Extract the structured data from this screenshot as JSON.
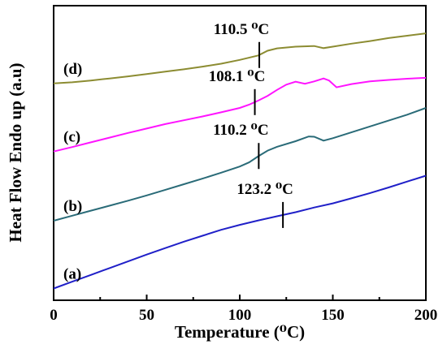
{
  "chart_data": {
    "type": "line",
    "xlabel": "Temperature (⁰C)",
    "ylabel": "Heat Flow Endo up (a.u)",
    "xlim": [
      0,
      200
    ],
    "ylim": [
      0,
      100
    ],
    "x_ticks": [
      "0",
      "50",
      "100",
      "150",
      "200"
    ],
    "grid": false,
    "legend": "none",
    "series": [
      {
        "name": "(a)",
        "color": "#2020c8",
        "annotation": "123.2 ⁰C",
        "transition_x": 123.2,
        "points": [
          [
            0,
            4
          ],
          [
            10,
            6.3
          ],
          [
            20,
            8.6
          ],
          [
            30,
            10.9
          ],
          [
            40,
            13.2
          ],
          [
            50,
            15.5
          ],
          [
            60,
            17.7
          ],
          [
            70,
            19.9
          ],
          [
            80,
            21.9
          ],
          [
            90,
            23.9
          ],
          [
            100,
            25.6
          ],
          [
            110,
            27.1
          ],
          [
            120,
            28.5
          ],
          [
            130,
            29.9
          ],
          [
            140,
            31.5
          ],
          [
            150,
            32.9
          ],
          [
            160,
            34.6
          ],
          [
            170,
            36.4
          ],
          [
            180,
            38.3
          ],
          [
            190,
            40.3
          ],
          [
            200,
            42.3
          ]
        ]
      },
      {
        "name": "(b)",
        "color": "#2a6b78",
        "annotation": "110.2 ⁰C",
        "transition_x": 110.2,
        "points": [
          [
            0,
            27
          ],
          [
            10,
            28.7
          ],
          [
            20,
            30.4
          ],
          [
            30,
            32.1
          ],
          [
            40,
            33.8
          ],
          [
            50,
            35.6
          ],
          [
            60,
            37.5
          ],
          [
            70,
            39.4
          ],
          [
            80,
            41.3
          ],
          [
            90,
            43.3
          ],
          [
            100,
            45.4
          ],
          [
            105,
            46.8
          ],
          [
            110,
            48.9
          ],
          [
            115,
            50.8
          ],
          [
            120,
            52.1
          ],
          [
            130,
            54
          ],
          [
            137,
            55.6
          ],
          [
            140,
            55.5
          ],
          [
            145,
            54.2
          ],
          [
            150,
            55
          ],
          [
            160,
            57
          ],
          [
            170,
            59
          ],
          [
            180,
            61
          ],
          [
            190,
            63
          ],
          [
            200,
            65.3
          ]
        ]
      },
      {
        "name": "(c)",
        "color": "#ff14ff",
        "annotation": "108.1 ⁰C",
        "transition_x": 108.1,
        "points": [
          [
            0,
            50.5
          ],
          [
            10,
            52
          ],
          [
            20,
            53.6
          ],
          [
            30,
            55.2
          ],
          [
            40,
            56.8
          ],
          [
            50,
            58.3
          ],
          [
            60,
            59.8
          ],
          [
            70,
            61.1
          ],
          [
            80,
            62.4
          ],
          [
            90,
            63.8
          ],
          [
            100,
            65.3
          ],
          [
            105,
            66.4
          ],
          [
            110,
            67.8
          ],
          [
            115,
            69.4
          ],
          [
            120,
            71.4
          ],
          [
            125,
            73.2
          ],
          [
            130,
            74.2
          ],
          [
            135,
            73.5
          ],
          [
            140,
            74.3
          ],
          [
            145,
            75.3
          ],
          [
            148,
            74.6
          ],
          [
            152,
            72.3
          ],
          [
            160,
            73.4
          ],
          [
            170,
            74.3
          ],
          [
            180,
            74.8
          ],
          [
            190,
            75.2
          ],
          [
            200,
            75.5
          ]
        ]
      },
      {
        "name": "(d)",
        "color": "#8c8c32",
        "annotation": "110.5 ⁰C",
        "transition_x": 110.5,
        "points": [
          [
            0,
            73.6
          ],
          [
            10,
            74
          ],
          [
            20,
            74.6
          ],
          [
            30,
            75.3
          ],
          [
            40,
            76
          ],
          [
            50,
            76.8
          ],
          [
            60,
            77.6
          ],
          [
            70,
            78.4
          ],
          [
            80,
            79.3
          ],
          [
            90,
            80.3
          ],
          [
            100,
            81.6
          ],
          [
            110,
            83.1
          ],
          [
            115,
            84.7
          ],
          [
            120,
            85.5
          ],
          [
            130,
            86.1
          ],
          [
            140,
            86.3
          ],
          [
            145,
            85.6
          ],
          [
            150,
            86.1
          ],
          [
            160,
            87.1
          ],
          [
            170,
            88
          ],
          [
            180,
            89
          ],
          [
            190,
            89.8
          ],
          [
            200,
            90.6
          ]
        ]
      }
    ]
  }
}
